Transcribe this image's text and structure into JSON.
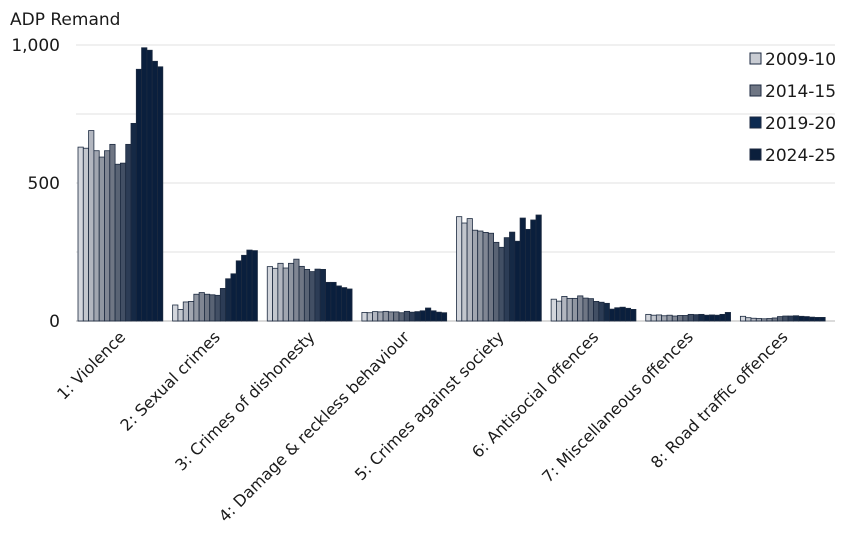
{
  "chart_data": {
    "type": "bar",
    "title": "",
    "ylabel": "ADP Remand",
    "xlabel": "",
    "ylim": [
      0,
      1000
    ],
    "yticks": [
      0,
      500,
      1000
    ],
    "ytick_labels": [
      "0",
      "500",
      "1,000"
    ],
    "grid": true,
    "grid_step": 250,
    "legend_position": "top-right",
    "legend": [
      {
        "label": "2009-10",
        "color": "#c9ccd3"
      },
      {
        "label": "2014-15",
        "color": "#6f7684"
      },
      {
        "label": "2019-20",
        "color": "#0d2b52"
      },
      {
        "label": "2024-25",
        "color": "#0b1f3c"
      }
    ],
    "bars_per_category": 16,
    "categories": [
      "1: Violence",
      "2: Sexual crimes",
      "3: Crimes of dishonesty",
      "4: Damage & reckless behaviour",
      "5: Crimes against society",
      "6: Antisocial offences",
      "7: Miscellaneous offences",
      "8: Road traffic offences"
    ],
    "values": [
      [
        630,
        626,
        690,
        617,
        594,
        617,
        640,
        568,
        572,
        640,
        716,
        912,
        990,
        981,
        941,
        921
      ],
      [
        58,
        42,
        69,
        71,
        97,
        103,
        97,
        95,
        93,
        118,
        153,
        171,
        218,
        238,
        257,
        255
      ],
      [
        197,
        191,
        209,
        192,
        209,
        224,
        198,
        187,
        179,
        188,
        187,
        140,
        140,
        127,
        121,
        116
      ],
      [
        31,
        30,
        34,
        33,
        35,
        33,
        33,
        30,
        35,
        32,
        34,
        37,
        47,
        37,
        32,
        30
      ],
      [
        378,
        355,
        371,
        329,
        326,
        321,
        318,
        285,
        267,
        302,
        322,
        289,
        373,
        332,
        366,
        384
      ],
      [
        79,
        72,
        89,
        82,
        82,
        91,
        83,
        81,
        71,
        68,
        64,
        43,
        48,
        50,
        46,
        42
      ],
      [
        24,
        21,
        22,
        19,
        21,
        18,
        20,
        20,
        24,
        23,
        24,
        21,
        22,
        21,
        24,
        31
      ],
      [
        17,
        12,
        10,
        9,
        8,
        9,
        11,
        16,
        18,
        18,
        19,
        17,
        16,
        14,
        13,
        13
      ]
    ],
    "color_start": "#d3d6dc",
    "color_mid": "#6f7684",
    "color_end": "#0a1f3d"
  }
}
